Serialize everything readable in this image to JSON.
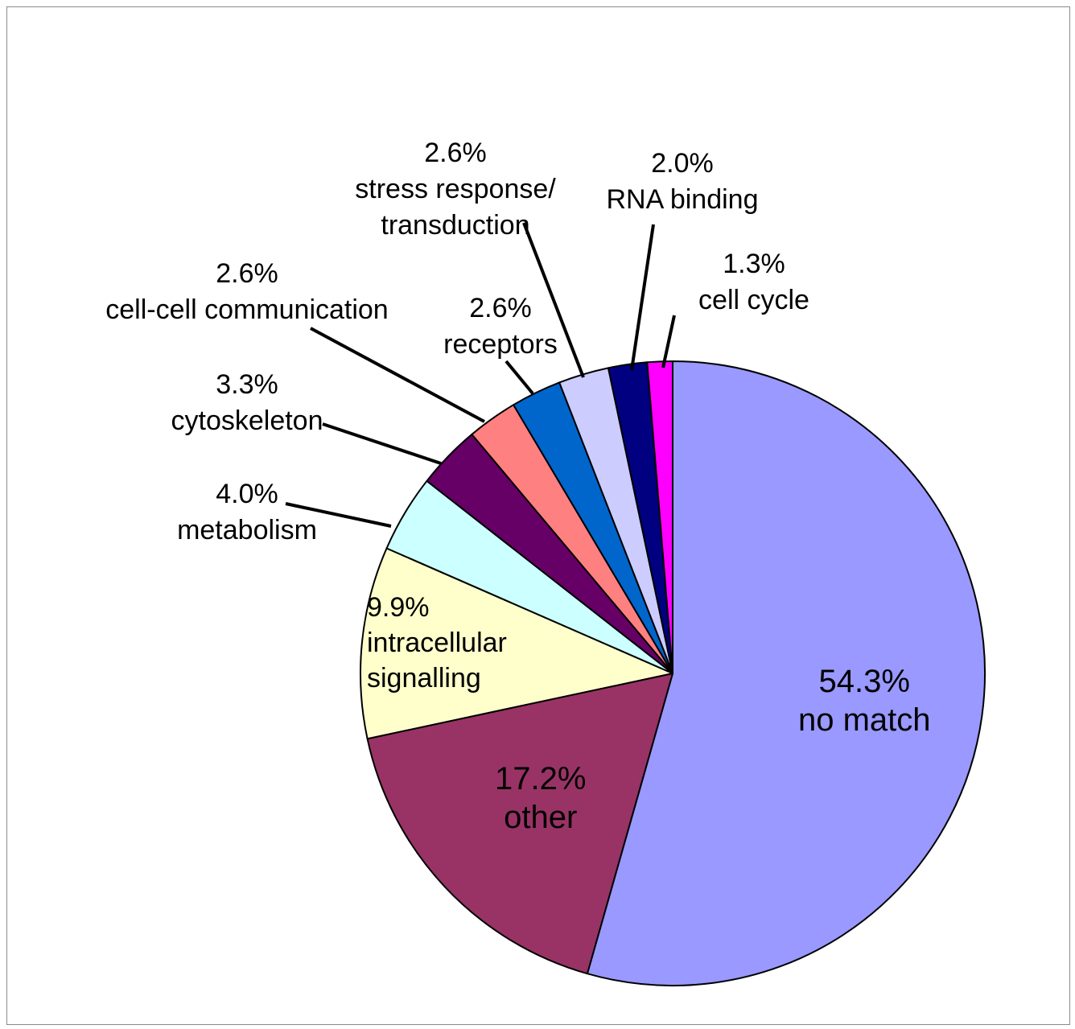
{
  "chart_data": {
    "type": "pie",
    "title": "",
    "slices": [
      {
        "value": 54.3,
        "label": "no match",
        "pct": "54.3%",
        "color": "#9999FF"
      },
      {
        "value": 17.2,
        "label": "other",
        "pct": "17.2%",
        "color": "#993366"
      },
      {
        "value": 9.9,
        "label": "intracellular signalling",
        "label_lines": [
          "intracellular",
          "signalling"
        ],
        "pct": "9.9%",
        "color": "#FFFFCC"
      },
      {
        "value": 4.0,
        "label": "metabolism",
        "pct": "4.0%",
        "color": "#CCFFFF"
      },
      {
        "value": 3.3,
        "label": "cytoskeleton",
        "pct": "3.3%",
        "color": "#660066"
      },
      {
        "value": 2.6,
        "label": "cell-cell communication",
        "pct": "2.6%",
        "color": "#FF8080"
      },
      {
        "value": 2.6,
        "label": "receptors",
        "pct": "2.6%",
        "color": "#0066CC"
      },
      {
        "value": 2.6,
        "label": "stress response/ transduction",
        "label_lines": [
          "stress response/",
          "transduction"
        ],
        "pct": "2.6%",
        "color": "#CCCCFF"
      },
      {
        "value": 2.0,
        "label": "RNA binding",
        "pct": "2.0%",
        "color": "#000080"
      },
      {
        "value": 1.3,
        "label": "cell cycle",
        "pct": "1.3%",
        "color": "#FF00FF"
      }
    ],
    "start": "12 o'clock",
    "direction": "clockwise",
    "legend": "none"
  }
}
